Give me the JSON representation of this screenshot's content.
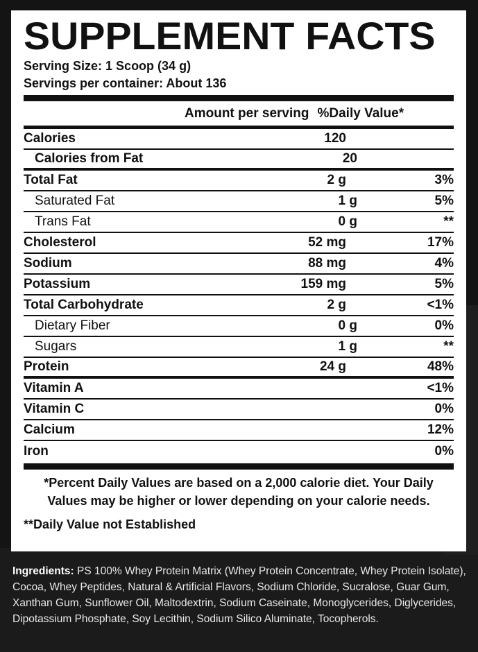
{
  "title": "SUPPLEMENT FACTS",
  "serving_size": "Serving Size: 1 Scoop (34 g)",
  "servings_per_container": "Servings per container: About 136",
  "header": {
    "amount_label": "Amount per serving",
    "dv_label": "%Daily Value*"
  },
  "rows": [
    {
      "name": "Calories",
      "amount": "120",
      "dv": ""
    },
    {
      "name": "Calories from Fat",
      "amount": "20",
      "dv": ""
    },
    {
      "name": "Total Fat",
      "amount": "2 g",
      "dv": "3%"
    },
    {
      "name": "Saturated Fat",
      "amount": "1 g",
      "dv": "5%"
    },
    {
      "name": "Trans Fat",
      "amount": "0 g",
      "dv": "**"
    },
    {
      "name": "Cholesterol",
      "amount": "52 mg",
      "dv": "17%"
    },
    {
      "name": "Sodium",
      "amount": "88 mg",
      "dv": "4%"
    },
    {
      "name": "Potassium",
      "amount": "159 mg",
      "dv": "5%"
    },
    {
      "name": "Total Carbohydrate",
      "amount": "2 g",
      "dv": "<1%"
    },
    {
      "name": "Dietary Fiber",
      "amount": "0 g",
      "dv": "0%"
    },
    {
      "name": "Sugars",
      "amount": "1 g",
      "dv": "**"
    },
    {
      "name": "Protein",
      "amount": "24 g",
      "dv": "48%"
    },
    {
      "name": "Vitamin A",
      "amount": "",
      "dv": "<1%"
    },
    {
      "name": "Vitamin C",
      "amount": "",
      "dv": "0%"
    },
    {
      "name": "Calcium",
      "amount": "",
      "dv": "12%"
    },
    {
      "name": "Iron",
      "amount": "",
      "dv": "0%"
    }
  ],
  "footnote": {
    "line1": "*Percent Daily Values are based on a 2,000 calorie diet. Your Daily Values may be higher or lower depending on your calorie needs.",
    "line2": "**Daily Value not Established"
  },
  "ingredients": {
    "label": "Ingredients:",
    "text": "PS 100% Whey Protein Matrix (Whey Protein Concentrate, Whey Protein Isolate), Cocoa, Whey Peptides, Natural & Artificial Flavors, Sodium Chloride, Sucralose, Guar Gum, Xanthan Gum, Sunflower Oil, Maltodextrin, Sodium Caseinate, Monoglycerides, Diglycerides, Dipotassium Phosphate, Soy Lecithin, Sodium Silico Aluminate, Tocopherols."
  }
}
